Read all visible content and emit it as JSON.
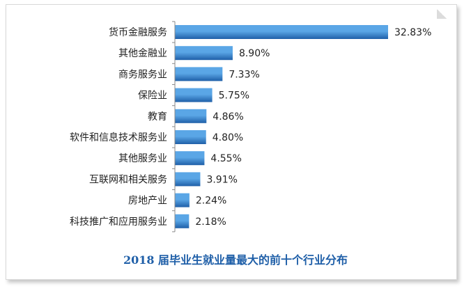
{
  "chart_data": {
    "type": "bar",
    "orientation": "horizontal",
    "title": "2018 届毕业生就业量最大的前十个行业分布",
    "categories": [
      "货币金融服务",
      "其他金融业",
      "商务服务业",
      "保险业",
      "教育",
      "软件和信息技术服务业",
      "其他服务业",
      "互联网和相关服务",
      "房地产业",
      "科技推广和应用服务业"
    ],
    "values": [
      32.83,
      8.9,
      7.33,
      5.75,
      4.86,
      4.8,
      4.55,
      3.91,
      2.24,
      2.18
    ],
    "value_labels": [
      "32.83%",
      "8.90%",
      "7.33%",
      "5.75%",
      "4.86%",
      "4.80%",
      "4.55%",
      "3.91%",
      "2.24%",
      "2.18%"
    ],
    "unit": "%",
    "xlim": [
      0,
      35
    ],
    "grid": false,
    "legend": "none",
    "colors": {
      "bar_light": "#5aa6e6",
      "bar_dark": "#1f5fa8",
      "axis": "#888888",
      "title": "#1f5fa8"
    }
  }
}
